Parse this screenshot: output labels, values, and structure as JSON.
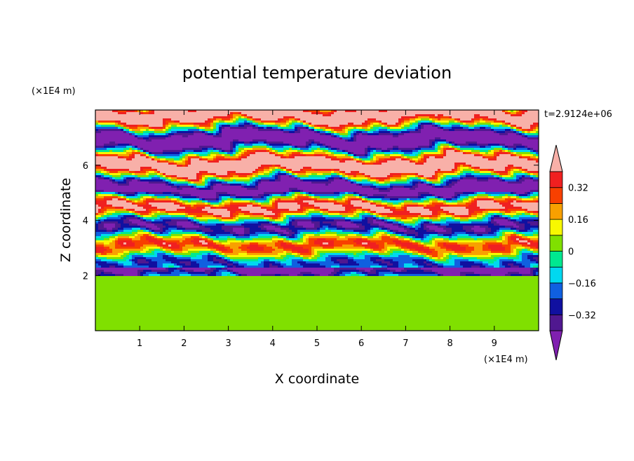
{
  "chart_data": {
    "type": "heatmap",
    "title": "potential temperature deviation",
    "xlabel": "X coordinate",
    "ylabel": "Z coordinate",
    "x_unit": "(×1E4 m)",
    "y_unit": "(×1E4 m)",
    "time_label": "t=2.9124e+06",
    "xlim": [
      0,
      10
    ],
    "ylim": [
      0,
      8
    ],
    "x_ticks": [
      "1",
      "2",
      "3",
      "4",
      "5",
      "6",
      "7",
      "8",
      "9"
    ],
    "x_tick_values": [
      1,
      2,
      3,
      4,
      5,
      6,
      7,
      8,
      9
    ],
    "y_ticks": [
      "2",
      "4",
      "6"
    ],
    "y_tick_values": [
      2,
      4,
      6
    ],
    "colorbar": {
      "levels": [
        -0.4,
        -0.32,
        -0.24,
        -0.16,
        -0.08,
        0,
        0.08,
        0.16,
        0.24,
        0.32,
        0.4
      ],
      "labels": [
        "0.32",
        "0.16",
        "0",
        "−0.16",
        "−0.32"
      ],
      "label_values": [
        0.32,
        0.16,
        0,
        -0.16,
        -0.32
      ],
      "colors": [
        "#8020b0",
        "#501890",
        "#1010a0",
        "#1060e0",
        "#00d8f0",
        "#00e890",
        "#80e000",
        "#f8f800",
        "#f8a000",
        "#f84000",
        "#f02020",
        "#f8b0a8"
      ],
      "extend": "both"
    },
    "regions": [
      {
        "description_z_range": [
          0,
          1.95
        ],
        "dominant_values": [
          0.0,
          0.04
        ]
      },
      {
        "description_z_range": [
          1.95,
          5.0
        ],
        "dominant_values": [
          -0.4,
          0.4
        ]
      },
      {
        "description_z_range": [
          5.0,
          8.0
        ],
        "dominant_values": [
          -0.45,
          0.45
        ]
      }
    ]
  }
}
